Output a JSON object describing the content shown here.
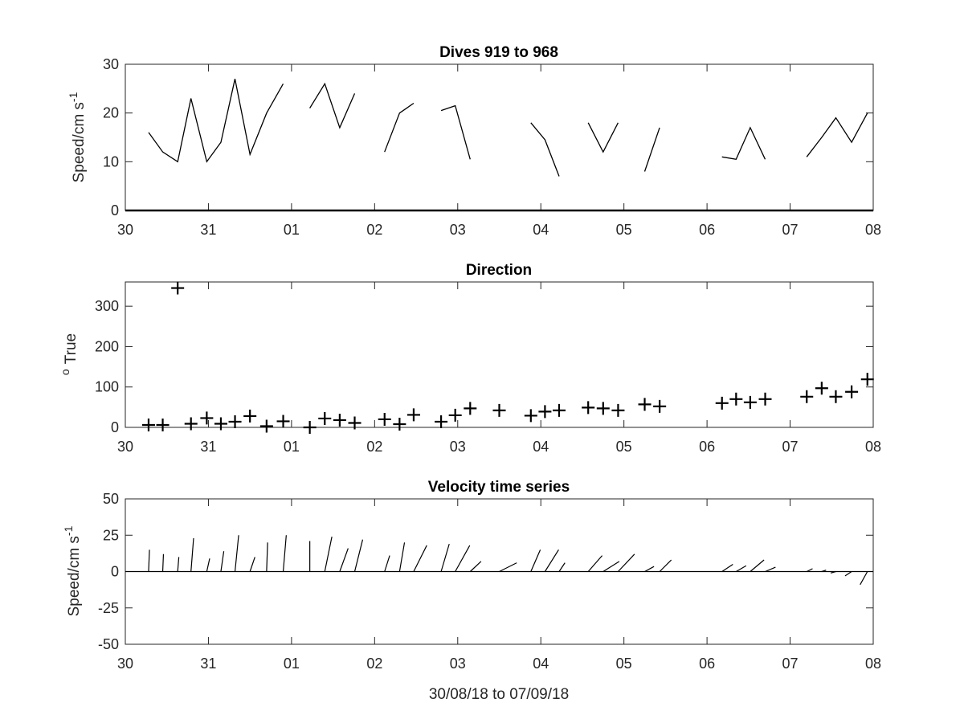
{
  "figure_xlabel": "30/08/18 to 07/09/18",
  "chart_data": [
    {
      "type": "line",
      "title": "Dives 919 to 968",
      "ylabel_main": "Speed/cm s",
      "ylabel_sup": "-1",
      "xlabel": "",
      "xlim": [
        0,
        9
      ],
      "ylim": [
        0,
        30
      ],
      "x_tick_labels": [
        "30",
        "31",
        "01",
        "02",
        "03",
        "04",
        "05",
        "06",
        "07",
        "08"
      ],
      "y_ticks": [
        0,
        10,
        20,
        30
      ],
      "line_color": "#000000",
      "segments": [
        {
          "x": [
            0.28,
            0.45,
            0.63,
            0.79,
            0.98,
            1.15,
            1.32,
            1.5,
            1.7,
            1.9
          ],
          "y": [
            16,
            12,
            10,
            23,
            10,
            14,
            27,
            11.5,
            20,
            26
          ]
        },
        {
          "x": [
            2.22,
            2.4,
            2.58,
            2.76
          ],
          "y": [
            21,
            26,
            17,
            24
          ]
        },
        {
          "x": [
            3.12,
            3.3,
            3.47
          ],
          "y": [
            12,
            20,
            22
          ]
        },
        {
          "x": [
            3.8,
            3.97,
            4.15
          ],
          "y": [
            20.5,
            21.5,
            10.5
          ]
        },
        {
          "x": [
            4.88,
            5.05,
            5.22
          ],
          "y": [
            18,
            14.5,
            7
          ]
        },
        {
          "x": [
            5.57,
            5.75,
            5.93
          ],
          "y": [
            18,
            12,
            18
          ]
        },
        {
          "x": [
            6.25,
            6.43
          ],
          "y": [
            8,
            17
          ]
        },
        {
          "x": [
            7.18,
            7.35,
            7.52,
            7.7
          ],
          "y": [
            11,
            10.5,
            17,
            10.5
          ]
        },
        {
          "x": [
            8.2,
            8.38,
            8.55,
            8.74,
            8.93
          ],
          "y": [
            11,
            15,
            19,
            14,
            20
          ]
        }
      ]
    },
    {
      "type": "scatter",
      "title": "Direction",
      "ylabel_main": "True",
      "ylabel_sup": "o",
      "xlabel": "",
      "xlim": [
        0,
        9
      ],
      "ylim": [
        0,
        360
      ],
      "x_tick_labels": [
        "30",
        "31",
        "01",
        "02",
        "03",
        "04",
        "05",
        "06",
        "07",
        "08"
      ],
      "y_ticks": [
        0,
        100,
        200,
        300
      ],
      "marker": "plus",
      "marker_color": "#000000",
      "x": [
        0.28,
        0.45,
        0.63,
        0.79,
        0.98,
        1.15,
        1.32,
        1.5,
        1.7,
        1.9,
        2.22,
        2.4,
        2.58,
        2.76,
        3.12,
        3.3,
        3.47,
        3.8,
        3.97,
        4.15,
        4.5,
        4.88,
        5.05,
        5.22,
        5.57,
        5.75,
        5.93,
        6.25,
        6.43,
        7.18,
        7.35,
        7.52,
        7.7,
        8.2,
        8.38,
        8.55,
        8.74,
        8.93
      ],
      "y": [
        6,
        6,
        345,
        9,
        23,
        9,
        14,
        28,
        3,
        15,
        0,
        22,
        18,
        11,
        20,
        8,
        31,
        14,
        30,
        47,
        42,
        29,
        39,
        42,
        49,
        47,
        42,
        57,
        52,
        60,
        70,
        62,
        70,
        76,
        97,
        76,
        88,
        119
      ]
    },
    {
      "type": "line",
      "subtype": "stick-plot",
      "title": "Velocity time series",
      "ylabel_main": "Speed/cm s",
      "ylabel_sup": "-1",
      "xlabel": "30/08/18 to 07/09/18",
      "xlim": [
        0,
        9
      ],
      "ylim": [
        -50,
        50
      ],
      "x_tick_labels": [
        "30",
        "31",
        "01",
        "02",
        "03",
        "04",
        "05",
        "06",
        "07",
        "08"
      ],
      "y_ticks": [
        -50,
        -25,
        0,
        25,
        50
      ],
      "baseline": 0,
      "line_color": "#000000",
      "x": [
        0.28,
        0.45,
        0.63,
        0.79,
        0.98,
        1.15,
        1.32,
        1.5,
        1.7,
        1.9,
        2.22,
        2.4,
        2.58,
        2.76,
        3.12,
        3.3,
        3.47,
        3.8,
        3.97,
        4.15,
        4.5,
        4.88,
        5.05,
        5.22,
        5.57,
        5.75,
        5.93,
        6.25,
        6.43,
        7.18,
        7.35,
        7.52,
        7.7,
        8.2,
        8.38,
        8.55,
        8.74,
        8.93
      ],
      "u": [
        0.6,
        0.5,
        0.8,
        1.8,
        2.0,
        2.0,
        2.5,
        3.4,
        0.7,
        2.1,
        0.0,
        4.9,
        5.8,
        5.5,
        3.5,
        3.4,
        9.0,
        5.6,
        10.0,
        7.5,
        12.0,
        6.5,
        9.4,
        4.0,
        9.6,
        11.1,
        11.3,
        6.4,
        8.0,
        7.5,
        6.9,
        9.5,
        7.1,
        4.0,
        3.0,
        -3.5,
        -4.5,
        -5.0
      ],
      "v": [
        15,
        12,
        10,
        23,
        9,
        14,
        25,
        10,
        20,
        25,
        21,
        24,
        16,
        22,
        11,
        20,
        18,
        19,
        18,
        7,
        6,
        15,
        15,
        6,
        11,
        7,
        12,
        3.5,
        8,
        5,
        4,
        8,
        3,
        2,
        1,
        -1,
        -3,
        -9
      ]
    }
  ]
}
